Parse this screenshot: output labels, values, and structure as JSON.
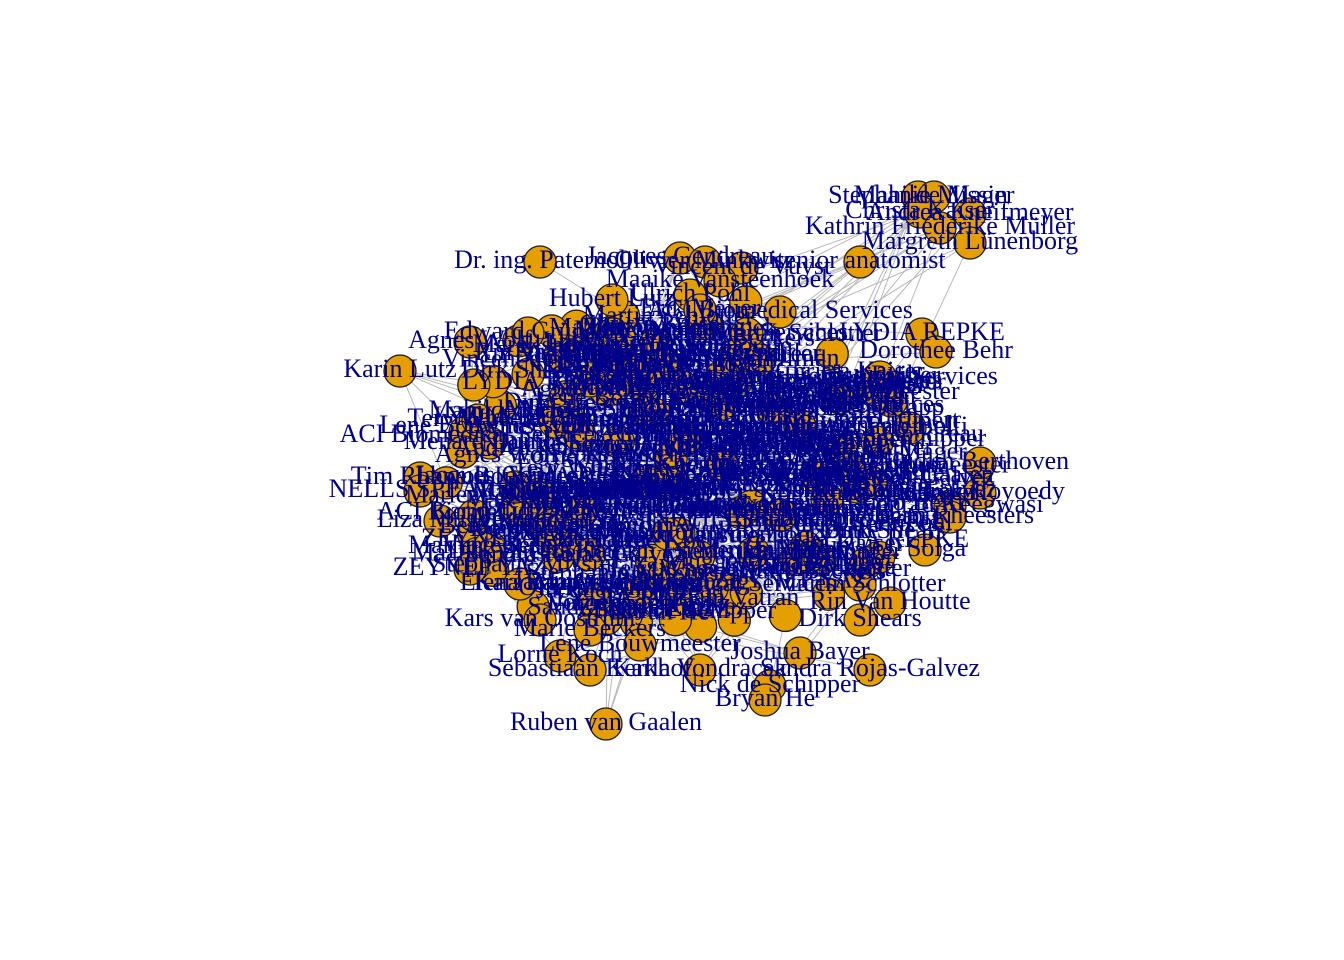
{
  "colors": {
    "node_fill": "#E69F00",
    "label": "#00008B",
    "edge": "#B8B8B8",
    "background": "#FFFFFF"
  },
  "labels": [
    "Stephanie Missin",
    "Mahilde Mager",
    "Christa Kaiser",
    "Andrea Kneifmeyer",
    "Kathrin Friederike Müller",
    "Margreth Lünenborg",
    "Dr. ing. Paternol",
    "Jacques Gendreau",
    "Olivier Minkwitz",
    "Vincent de Vuyst",
    "senior anatomist",
    "Maaike Vansteenhoek",
    "Hubert Lutz",
    "Ulrich Pohl",
    "Erik Meijer",
    "ACI Biomedical Services",
    "Agnes Wolf",
    "Karin Lutz",
    "Edward Grünert",
    "LYDIA REPKE",
    "Dorothee Behr",
    "Elsa Reiber",
    "Erik Schiffman",
    "Mirjam Vatran",
    "Tery Wheeler",
    "Carlo Belfi",
    "Menard Dumont",
    "Tim Rohwolt",
    "Judith Berthoven",
    "NELLS SPEARS",
    "Marek Hoyoedy",
    "Konrad Keegwasi",
    "Liza Mugge",
    "Johan Rheesters",
    "Marlene Bernig",
    "J. Solga",
    "ZEYNEP YAZ",
    "Bert Berhalter",
    "Elena Rapp",
    "Martin Schlotter",
    "Rin Van Houtte",
    "Kars van Oostrum",
    "Dirk Shears",
    "Marie Beckers",
    "Lene Bouwmeester",
    "Joshua Bayer",
    "Lorne Koch",
    "Sebastiaan Kerkhof",
    "Karla Vondracek",
    "Sandra Rojas-Galvez",
    "Nick de Schipper",
    "Bryan He",
    "Ruben van Gaalen"
  ]
}
